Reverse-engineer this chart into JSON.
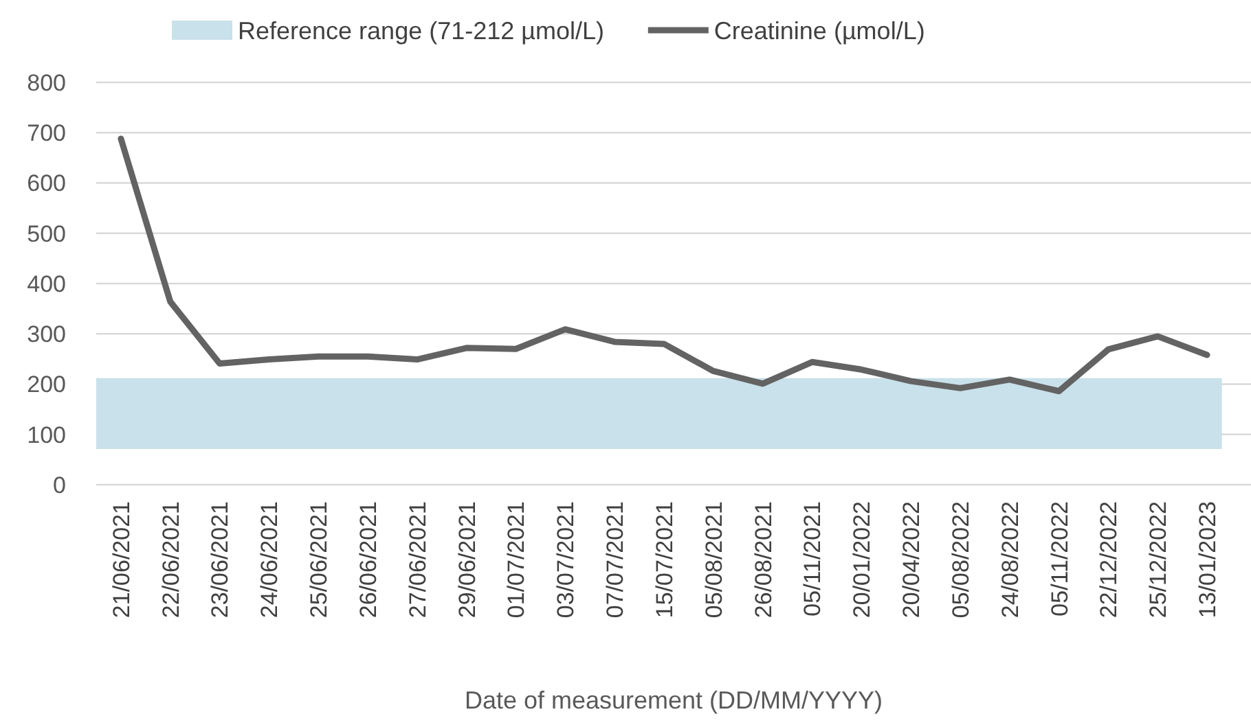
{
  "chart_data": {
    "type": "line",
    "xlabel": "Date of measurement (DD/MM/YYYY)",
    "categories": [
      "21/06/2021",
      "22/06/2021",
      "23/06/2021",
      "24/06/2021",
      "25/06/2021",
      "26/06/2021",
      "27/06/2021",
      "29/06/2021",
      "01/07/2021",
      "03/07/2021",
      "07/07/2021",
      "15/07/2021",
      "05/08/2021",
      "26/08/2021",
      "05/11/2021",
      "20/01/2022",
      "20/04/2022",
      "05/08/2022",
      "24/08/2022",
      "05/11/2022",
      "22/12/2022",
      "25/12/2022",
      "13/01/2023"
    ],
    "series": [
      {
        "name": "Creatinine (µmol/L)",
        "color": "#636363",
        "values": [
          688,
          364,
          241,
          249,
          255,
          255,
          249,
          272,
          270,
          309,
          284,
          280,
          226,
          201,
          244,
          229,
          206,
          192,
          209,
          186,
          269,
          295,
          258
        ]
      }
    ],
    "bands": [
      {
        "axis": "y",
        "from": 71,
        "to": 212,
        "label": "Reference range (71-212 µmol/L)",
        "color": "#c9e1ea"
      }
    ],
    "ylim": [
      0,
      800
    ],
    "yticks": [
      0,
      100,
      200,
      300,
      400,
      500,
      600,
      700,
      800
    ],
    "grid": "y",
    "legend": "top",
    "marker": "none",
    "line_style": "solid"
  }
}
